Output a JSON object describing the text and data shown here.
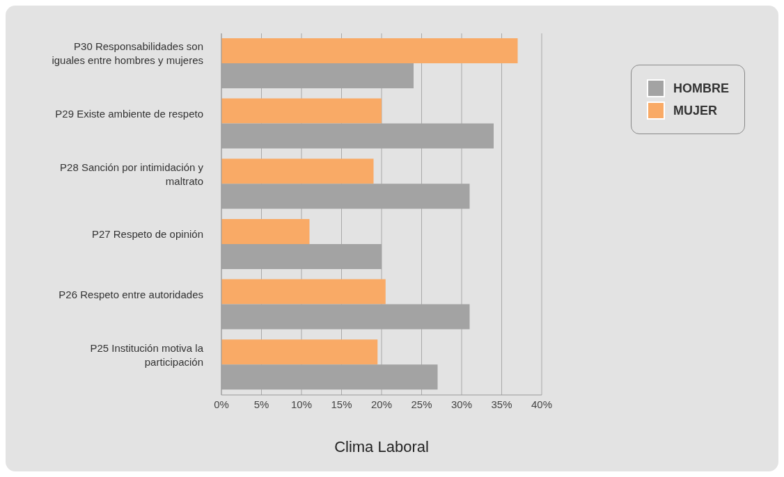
{
  "chart_data": {
    "type": "bar",
    "orientation": "horizontal",
    "xlabel": "Clima Laboral",
    "categories": [
      "P30 Responsabilidades son iguales entre hombres y mujeres",
      "P29 Existe ambiente de respeto",
      "P28 Sanción por intimidación y maltrato",
      "P27 Respeto de opinión",
      "P26 Respeto entre autoridades",
      "P25 Institución motiva la participación"
    ],
    "series": [
      {
        "name": "HOMBRE",
        "color": "#a3a3a3",
        "values": [
          24,
          34,
          31,
          20,
          31,
          27
        ]
      },
      {
        "name": "MUJER",
        "color": "#f9aa66",
        "values": [
          37,
          20,
          19,
          11,
          20.5,
          19.5
        ]
      }
    ],
    "xlim": [
      0,
      40
    ],
    "xticks": [
      {
        "value": 0,
        "label": "0%"
      },
      {
        "value": 5,
        "label": "5%"
      },
      {
        "value": 10,
        "label": "10%"
      },
      {
        "value": 15,
        "label": "15%"
      },
      {
        "value": 20,
        "label": "20%"
      },
      {
        "value": 25,
        "label": "25%"
      },
      {
        "value": 30,
        "label": "30%"
      },
      {
        "value": 35,
        "label": "35%"
      },
      {
        "value": 40,
        "label": "40%"
      }
    ],
    "grid": "x",
    "legend": "top right"
  }
}
